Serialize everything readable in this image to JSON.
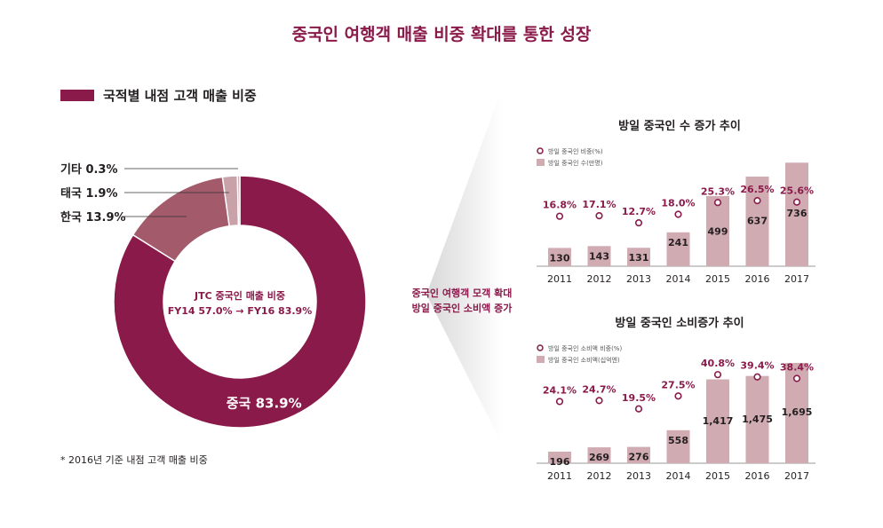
{
  "title": "중국인 여행객 매출 비중 확대를 통한 성장",
  "donut": {
    "legend": "국적별 내점 고객 매출 비중",
    "center_line1": "JTC 중국인 매출 비중",
    "center_line2": "FY14 57.0% → FY16 83.9%",
    "footnote": "* 2016년 기준 내점 고객 매출 비중"
  },
  "middle": {
    "line1": "중국인 여행객 모객 확대",
    "line2": "방일 중국인 소비액 증가"
  },
  "colors": {
    "primary": "#8a1a4a",
    "secondary": "#a35a6b",
    "tertiary": "#c9a2a9",
    "bar": "#d1abb2",
    "wedge": "#e4e4e4"
  },
  "chart_data": [
    {
      "type": "pie",
      "title": "국적별 내점 고객 매출 비중",
      "categories": [
        "중국",
        "한국",
        "태국",
        "기타"
      ],
      "values": [
        83.9,
        13.9,
        1.9,
        0.3
      ],
      "labels": [
        "중국 83.9%",
        "한국 13.9%",
        "태국 1.9%",
        "기타 0.3%"
      ]
    },
    {
      "type": "bar",
      "title": "방일 중국인 수 증가 추이",
      "legend_line": "방일 중국인 비중(%)",
      "legend_bar": "방일 중국인 수(만명)",
      "categories": [
        "2011",
        "2012",
        "2013",
        "2014",
        "2015",
        "2016",
        "2017"
      ],
      "bars": [
        130,
        143,
        131,
        241,
        499,
        637,
        736
      ],
      "bar_labels": [
        "130",
        "143",
        "131",
        "241",
        "499",
        "637",
        "736"
      ],
      "share": [
        16.8,
        17.1,
        12.7,
        18.0,
        25.3,
        26.5,
        25.6
      ],
      "share_labels": [
        "16.8%",
        "17.1%",
        "12.7%",
        "18.0%",
        "25.3%",
        "26.5%",
        "25.6%"
      ],
      "ylim": [
        0,
        820
      ]
    },
    {
      "type": "bar",
      "title": "방일 중국인 소비증가 추이",
      "legend_line": "방일 중국인 소비액 비중(%)",
      "legend_bar": "방일 중국인 소비액(십억엔)",
      "categories": [
        "2011",
        "2012",
        "2013",
        "2014",
        "2015",
        "2016",
        "2017"
      ],
      "bars": [
        196,
        269,
        276,
        558,
        1417,
        1475,
        1695
      ],
      "bar_labels": [
        "196",
        "269",
        "276",
        "558",
        "1,417",
        "1,475",
        "1,695"
      ],
      "share": [
        24.1,
        24.7,
        19.5,
        27.5,
        40.8,
        39.4,
        38.4
      ],
      "share_labels": [
        "24.1%",
        "24.7%",
        "19.5%",
        "27.5%",
        "40.8%",
        "39.4%",
        "38.4%"
      ],
      "ylim": [
        0,
        1950
      ]
    }
  ]
}
